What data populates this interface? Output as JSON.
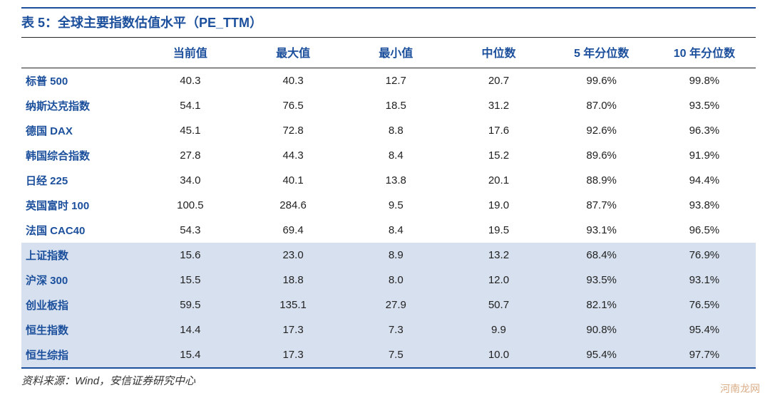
{
  "title": "表 5：全球主要指数估值水平（PE_TTM）",
  "columns": [
    "",
    "当前值",
    "最大值",
    "最小值",
    "中位数",
    "5 年分位数",
    "10 年分位数"
  ],
  "rows": [
    {
      "hl": false,
      "cells": [
        "标普 500",
        "40.3",
        "40.3",
        "12.7",
        "20.7",
        "99.6%",
        "99.8%"
      ]
    },
    {
      "hl": false,
      "cells": [
        "纳斯达克指数",
        "54.1",
        "76.5",
        "18.5",
        "31.2",
        "87.0%",
        "93.5%"
      ]
    },
    {
      "hl": false,
      "cells": [
        "德国 DAX",
        "45.1",
        "72.8",
        "8.8",
        "17.6",
        "92.6%",
        "96.3%"
      ]
    },
    {
      "hl": false,
      "cells": [
        "韩国综合指数",
        "27.8",
        "44.3",
        "8.4",
        "15.2",
        "89.6%",
        "91.9%"
      ]
    },
    {
      "hl": false,
      "cells": [
        "日经 225",
        "34.0",
        "40.1",
        "13.8",
        "20.1",
        "88.9%",
        "94.4%"
      ]
    },
    {
      "hl": false,
      "cells": [
        "英国富时 100",
        "100.5",
        "284.6",
        "9.5",
        "19.0",
        "87.7%",
        "93.8%"
      ]
    },
    {
      "hl": false,
      "cells": [
        "法国 CAC40",
        "54.3",
        "69.4",
        "8.4",
        "19.5",
        "93.1%",
        "96.5%"
      ]
    },
    {
      "hl": true,
      "cells": [
        "上证指数",
        "15.6",
        "23.0",
        "8.9",
        "13.2",
        "68.4%",
        "76.9%"
      ]
    },
    {
      "hl": true,
      "cells": [
        "沪深 300",
        "15.5",
        "18.8",
        "8.0",
        "12.0",
        "93.5%",
        "93.1%"
      ]
    },
    {
      "hl": true,
      "cells": [
        "创业板指",
        "59.5",
        "135.1",
        "27.9",
        "50.7",
        "82.1%",
        "76.5%"
      ]
    },
    {
      "hl": true,
      "cells": [
        "恒生指数",
        "14.4",
        "17.3",
        "7.3",
        "9.9",
        "90.8%",
        "95.4%"
      ]
    },
    {
      "hl": true,
      "cells": [
        "恒生综指",
        "15.4",
        "17.3",
        "7.5",
        "10.0",
        "95.4%",
        "97.7%"
      ]
    }
  ],
  "source": "资料来源：Wind，安信证券研究中心",
  "watermark": "河南龙网",
  "styling": {
    "title_color": "#1b4f9c",
    "header_color": "#1b4f9c",
    "row_name_color": "#1b4f9c",
    "highlight_bg": "#d7e0ee",
    "border_color_top": "#1b4f9c",
    "border_color_header": "#222222",
    "background": "#ffffff",
    "title_fontsize": 18,
    "header_fontsize": 16,
    "cell_fontsize": 15,
    "type": "table"
  }
}
